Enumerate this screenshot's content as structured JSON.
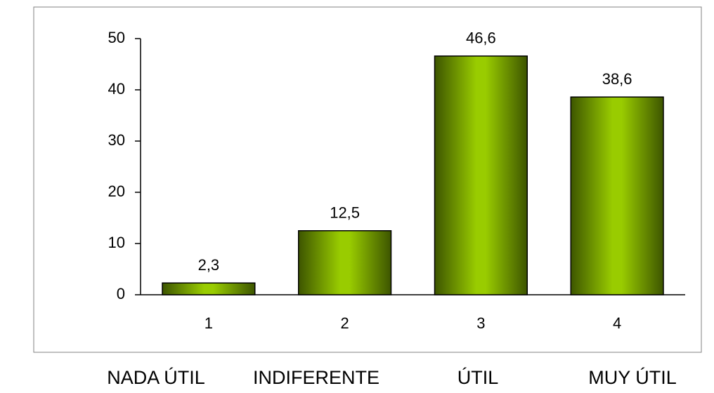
{
  "chart_data": {
    "type": "bar",
    "categories": [
      "1",
      "2",
      "3",
      "4"
    ],
    "values": [
      2.3,
      12.5,
      46.6,
      38.6
    ],
    "value_labels": [
      "2,3",
      "12,5",
      "46,6",
      "38,6"
    ],
    "color": "#99cc00",
    "ylim": [
      0,
      50
    ],
    "yticks": [
      0,
      10,
      20,
      30,
      40,
      50
    ],
    "grid": false,
    "category_descriptions": [
      "NADA ÚTIL",
      "INDIFERENTE",
      "ÚTIL",
      "MUY ÚTIL"
    ]
  }
}
